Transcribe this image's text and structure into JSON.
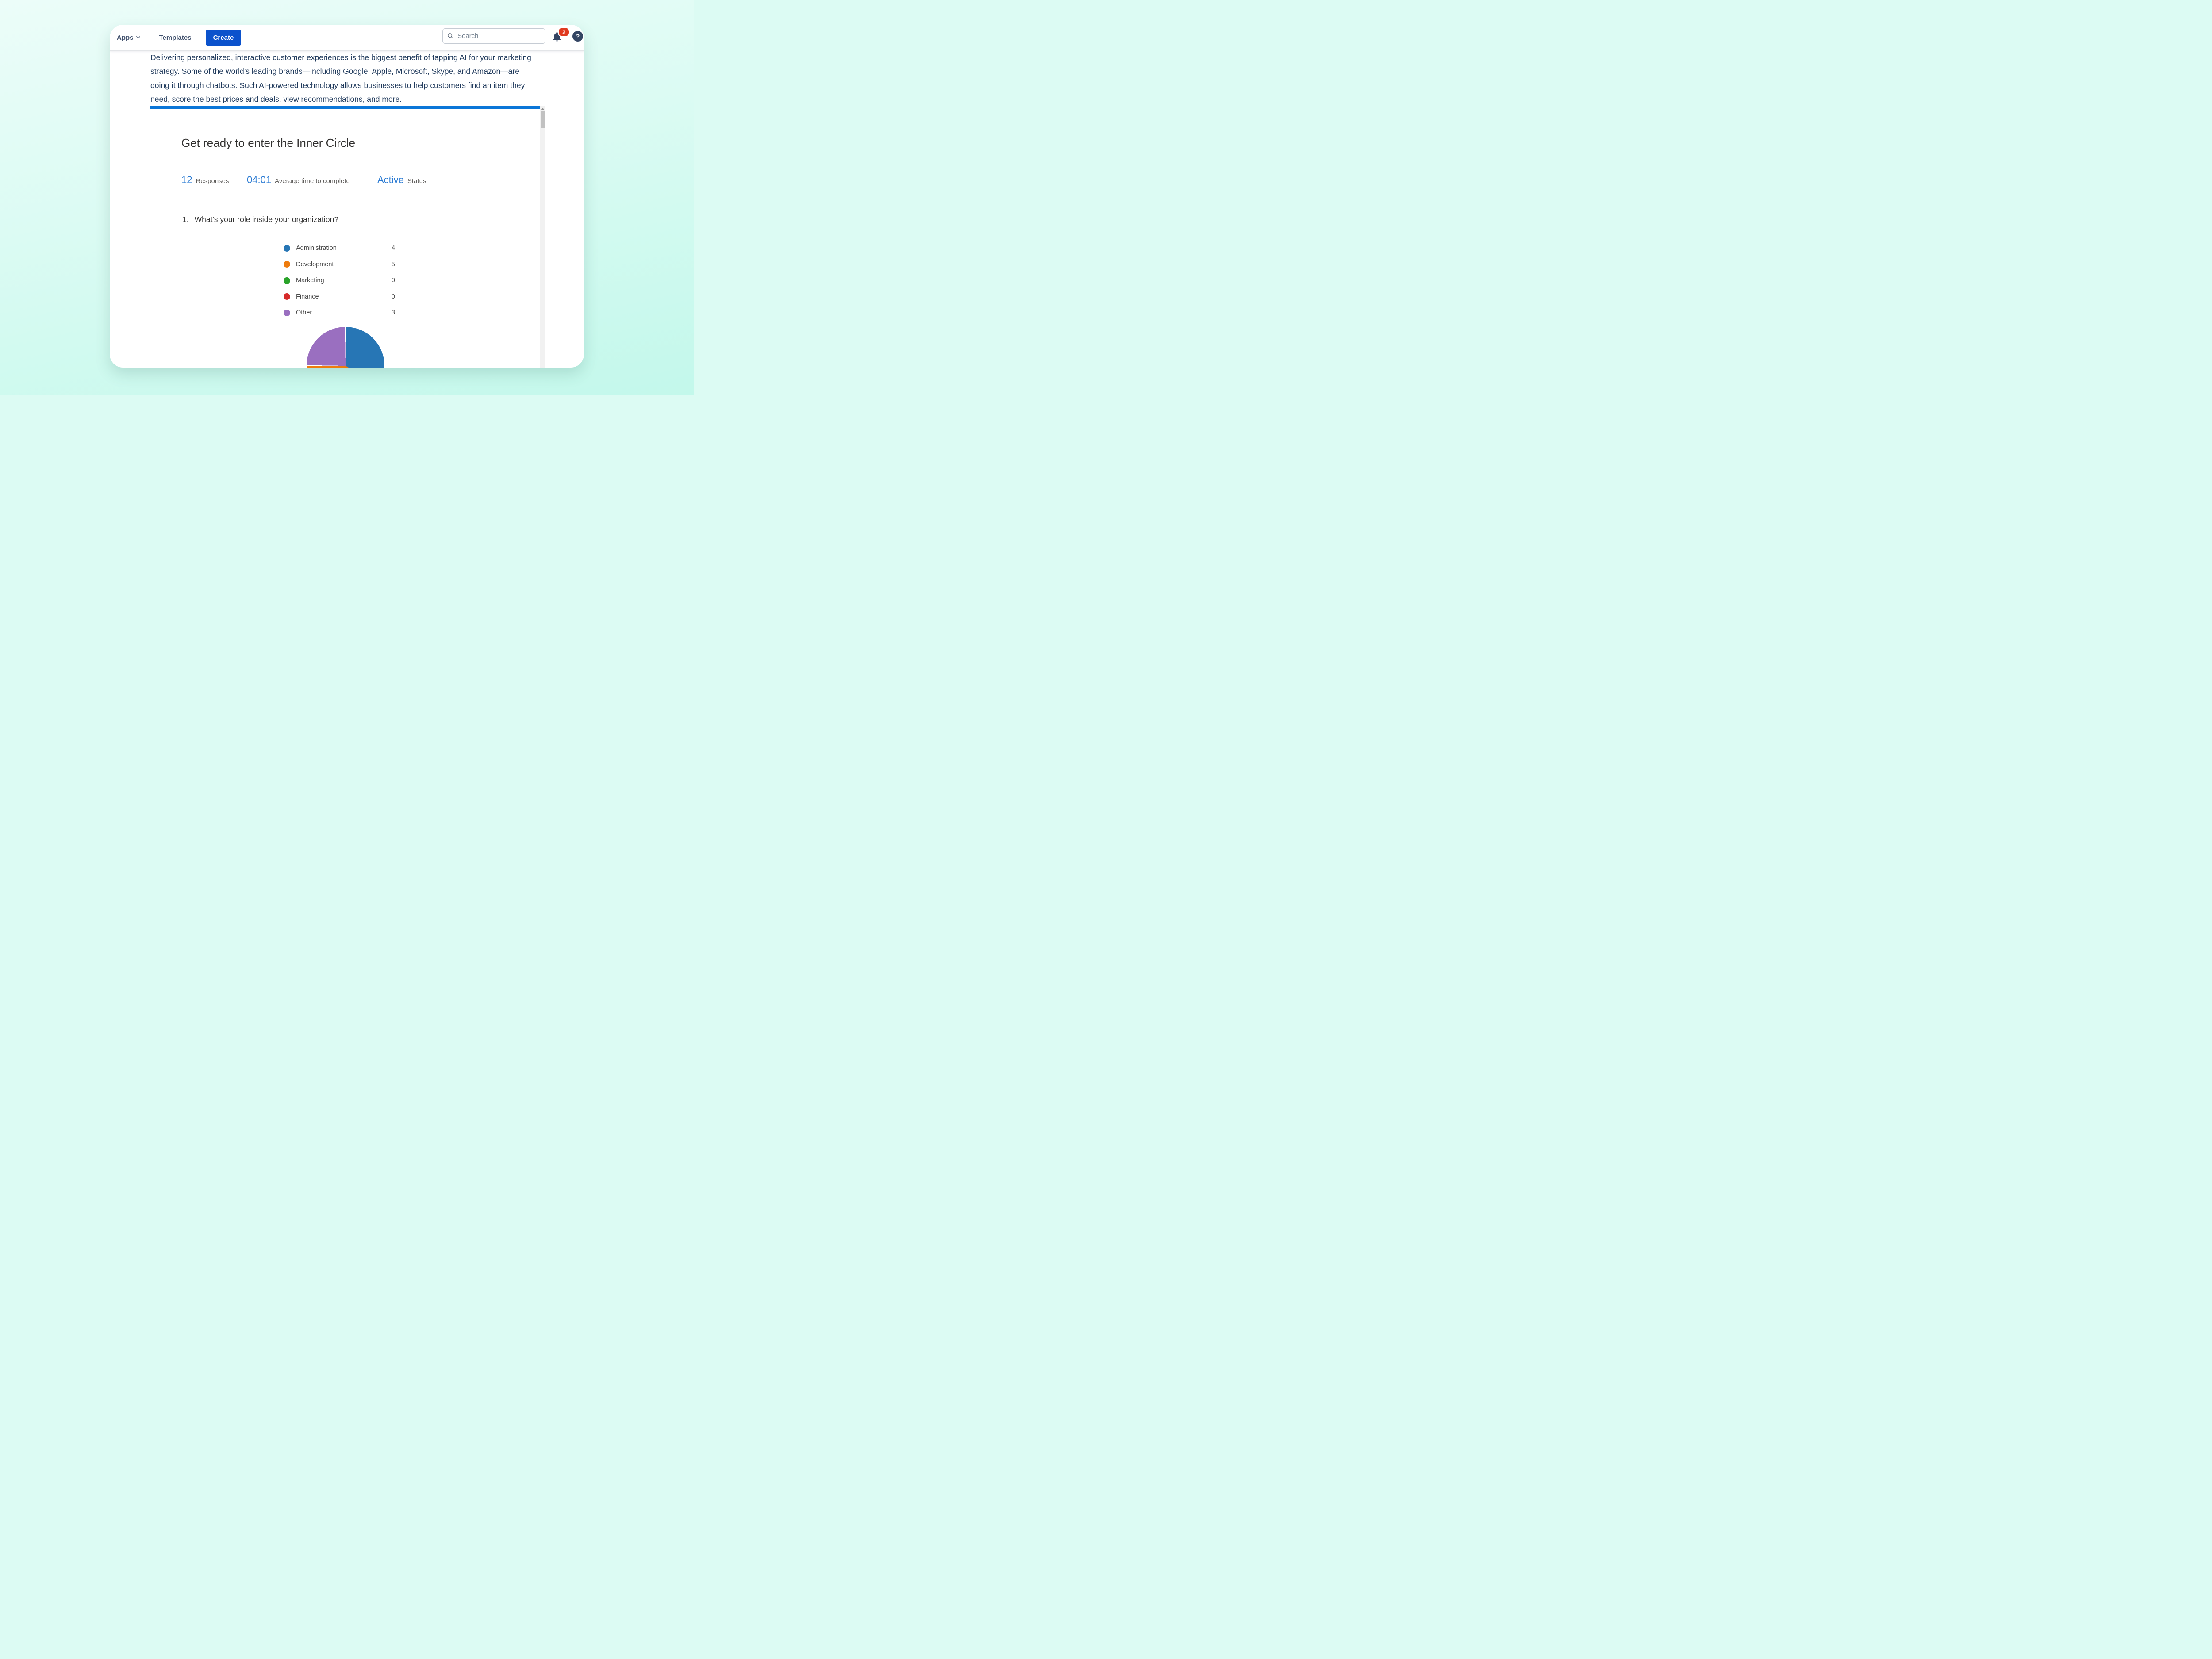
{
  "nav": {
    "apps_label": "Apps",
    "templates_label": "Templates",
    "create_label": "Create",
    "search_placeholder": "Search",
    "notification_count": "2",
    "help_label": "?"
  },
  "intro_paragraph": "Delivering personalized, interactive customer experiences is the biggest benefit of tapping AI for your marketing strategy. Some of the world’s leading brands—including Google, Apple, Microsoft, Skype, and Amazon—are doing it through chatbots. Such AI-powered technology allows businesses to help customers find an item they need, score the best prices and deals, view recommendations, and more.",
  "form": {
    "title": "Get ready to enter the Inner Circle",
    "stats": [
      {
        "value": "12",
        "label": "Responses"
      },
      {
        "value": "04:01",
        "label": "Average time to complete"
      },
      {
        "value": "Active",
        "label": "Status"
      }
    ],
    "question": {
      "number": "1.",
      "text": "What's your role inside your organization?"
    }
  },
  "chart_data": {
    "type": "pie",
    "title": "What's your role inside your organization?",
    "categories": [
      "Administration",
      "Development",
      "Marketing",
      "Finance",
      "Other"
    ],
    "values": [
      4,
      5,
      0,
      0,
      3
    ],
    "colors": [
      "#2776b5",
      "#ee7c0e",
      "#2aa32a",
      "#d62a2a",
      "#9a6fc0"
    ],
    "total_responses": 12,
    "legend_position": "above-chart",
    "slice_separator_color": "#ffffff",
    "start_angle_deg": 0,
    "direction": "clockwise"
  },
  "colors": {
    "create_button": "#0b52cc",
    "divider_bar": "#0b76d8",
    "stat_value": "#2b7bd3",
    "notification_badge": "#e03a20",
    "icon_navy": "#344563",
    "background_mint": "#c3f8eb"
  }
}
